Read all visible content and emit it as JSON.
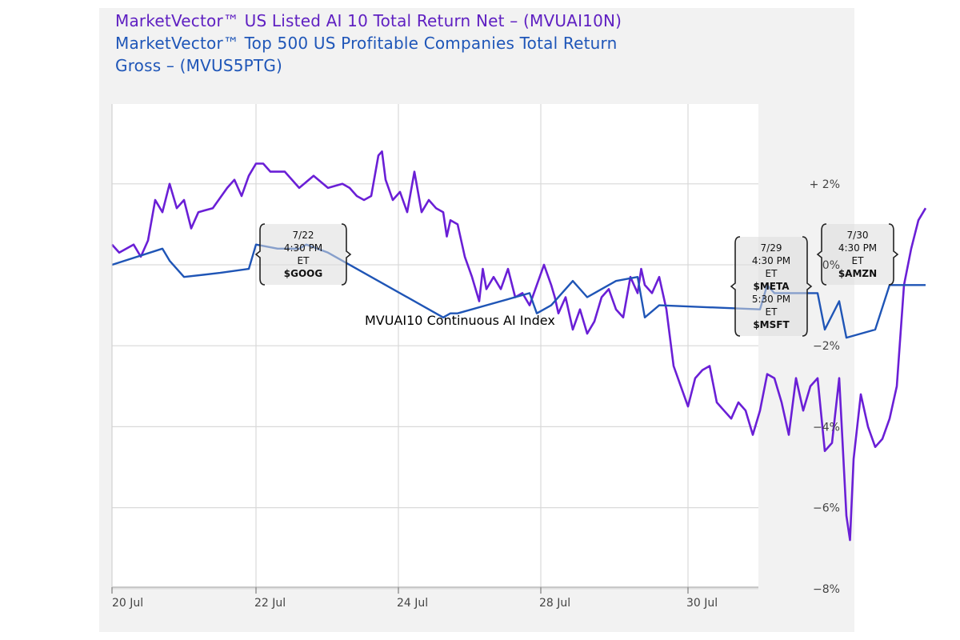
{
  "chart_data": {
    "type": "line",
    "legend": {
      "line1": "MarketVector™ US Listed AI 10 Total Return Net – (MVUAI10N)",
      "line2": "MarketVector™ Top 500 US Profitable Companies Total Return",
      "line3": "Gross – (MVUS5PTG)"
    },
    "x_tick_labels": [
      "20 Jul",
      "22 Jul",
      "24 Jul",
      "28 Jul",
      "30 Jul"
    ],
    "y_tick_labels": [
      "+ 2%",
      "0%",
      "−2%",
      "−4%",
      "−6%",
      "−8%"
    ],
    "ylim": [
      -8,
      2
    ],
    "grid": true,
    "y_axis_side": "right",
    "overlay_label": "MVUAI10 Continuous AI Index",
    "colors": {
      "series1": "#6a1fd6",
      "series2": "#1f55b6"
    },
    "series": [
      {
        "name": "MarketVector™ US Listed AI 10 Total Return Net – (MVUAI10N)",
        "points": [
          [
            0.0,
            0.5
          ],
          [
            0.1,
            0.3
          ],
          [
            0.2,
            0.4
          ],
          [
            0.3,
            0.5
          ],
          [
            0.4,
            0.2
          ],
          [
            0.5,
            0.6
          ],
          [
            0.6,
            1.6
          ],
          [
            0.7,
            1.3
          ],
          [
            0.8,
            2.0
          ],
          [
            0.9,
            1.4
          ],
          [
            1.0,
            1.6
          ],
          [
            1.1,
            0.9
          ],
          [
            1.2,
            1.3
          ],
          [
            1.4,
            1.4
          ],
          [
            1.6,
            1.9
          ],
          [
            1.7,
            2.1
          ],
          [
            1.8,
            1.7
          ],
          [
            1.9,
            2.2
          ],
          [
            2.0,
            2.5
          ],
          [
            2.1,
            2.5
          ],
          [
            2.2,
            2.3
          ],
          [
            2.4,
            2.3
          ],
          [
            2.5,
            2.1
          ],
          [
            2.6,
            1.9
          ],
          [
            2.8,
            2.2
          ],
          [
            3.0,
            1.9
          ],
          [
            3.2,
            2.0
          ],
          [
            3.3,
            1.9
          ],
          [
            3.4,
            1.7
          ],
          [
            3.5,
            1.6
          ],
          [
            3.6,
            1.7
          ],
          [
            3.7,
            2.7
          ],
          [
            3.75,
            2.8
          ],
          [
            3.8,
            2.1
          ],
          [
            3.9,
            1.6
          ],
          [
            4.0,
            1.8
          ],
          [
            4.1,
            1.3
          ],
          [
            4.2,
            2.3
          ],
          [
            4.3,
            1.3
          ],
          [
            4.4,
            1.6
          ],
          [
            4.5,
            1.4
          ],
          [
            4.6,
            1.3
          ],
          [
            4.65,
            0.7
          ],
          [
            4.7,
            1.1
          ],
          [
            4.8,
            1.0
          ],
          [
            4.9,
            0.2
          ],
          [
            5.0,
            -0.3
          ],
          [
            5.1,
            -0.9
          ],
          [
            5.15,
            -0.1
          ],
          [
            5.2,
            -0.6
          ],
          [
            5.3,
            -0.3
          ],
          [
            5.4,
            -0.6
          ],
          [
            5.5,
            -0.1
          ],
          [
            5.6,
            -0.8
          ],
          [
            5.7,
            -0.7
          ],
          [
            5.8,
            -1.0
          ],
          [
            5.9,
            -0.5
          ],
          [
            6.0,
            0.0
          ],
          [
            6.1,
            -0.5
          ],
          [
            6.15,
            -0.8
          ],
          [
            6.2,
            -1.2
          ],
          [
            6.3,
            -0.8
          ],
          [
            6.4,
            -1.6
          ],
          [
            6.5,
            -1.1
          ],
          [
            6.6,
            -1.7
          ],
          [
            6.7,
            -1.4
          ],
          [
            6.8,
            -0.8
          ],
          [
            6.9,
            -0.6
          ],
          [
            7.0,
            -1.1
          ],
          [
            7.1,
            -1.3
          ],
          [
            7.2,
            -0.3
          ],
          [
            7.3,
            -0.7
          ],
          [
            7.35,
            -0.1
          ],
          [
            7.4,
            -0.5
          ],
          [
            7.5,
            -0.7
          ],
          [
            7.6,
            -0.3
          ],
          [
            7.7,
            -1.1
          ],
          [
            7.8,
            -2.5
          ],
          [
            7.9,
            -3.0
          ],
          [
            8.0,
            -3.5
          ],
          [
            8.1,
            -2.8
          ],
          [
            8.2,
            -2.6
          ],
          [
            8.3,
            -2.5
          ],
          [
            8.4,
            -3.4
          ],
          [
            8.5,
            -3.6
          ],
          [
            8.6,
            -3.8
          ],
          [
            8.7,
            -3.4
          ],
          [
            8.8,
            -3.6
          ],
          [
            8.9,
            -4.2
          ],
          [
            9.0,
            -3.6
          ],
          [
            9.1,
            -2.7
          ],
          [
            9.2,
            -2.8
          ],
          [
            9.3,
            -3.4
          ],
          [
            9.4,
            -4.2
          ],
          [
            9.5,
            -2.8
          ],
          [
            9.6,
            -3.6
          ],
          [
            9.7,
            -3.0
          ],
          [
            9.8,
            -2.8
          ],
          [
            9.9,
            -4.6
          ],
          [
            10.0,
            -4.4
          ],
          [
            10.1,
            -2.8
          ],
          [
            10.2,
            -6.2
          ],
          [
            10.25,
            -6.8
          ],
          [
            10.3,
            -4.8
          ],
          [
            10.4,
            -3.2
          ],
          [
            10.5,
            -4.0
          ],
          [
            10.6,
            -4.5
          ],
          [
            10.7,
            -4.3
          ],
          [
            10.8,
            -3.8
          ],
          [
            10.9,
            -3.0
          ],
          [
            11.0,
            -0.5
          ],
          [
            11.1,
            0.4
          ],
          [
            11.2,
            1.1
          ],
          [
            11.3,
            1.4
          ]
        ]
      },
      {
        "name": "MarketVector™ Top 500 US Profitable Companies Total Return Gross – (MVUS5PTG)",
        "points": [
          [
            0.0,
            0.0
          ],
          [
            0.7,
            0.4
          ],
          [
            0.8,
            0.1
          ],
          [
            1.0,
            -0.3
          ],
          [
            1.5,
            -0.2
          ],
          [
            1.9,
            -0.1
          ],
          [
            2.0,
            0.5
          ],
          [
            2.3,
            0.4
          ],
          [
            2.6,
            0.4
          ],
          [
            2.7,
            0.5
          ],
          [
            3.0,
            0.3
          ],
          [
            4.6,
            -1.3
          ],
          [
            4.7,
            -1.2
          ],
          [
            4.8,
            -1.2
          ],
          [
            5.8,
            -0.7
          ],
          [
            5.9,
            -1.2
          ],
          [
            6.1,
            -1.0
          ],
          [
            6.4,
            -0.4
          ],
          [
            6.6,
            -0.8
          ],
          [
            6.7,
            -0.7
          ],
          [
            7.0,
            -0.4
          ],
          [
            7.3,
            -0.3
          ],
          [
            7.4,
            -1.3
          ],
          [
            7.6,
            -1.0
          ],
          [
            9.0,
            -1.1
          ],
          [
            9.1,
            -0.5
          ],
          [
            9.2,
            -0.7
          ],
          [
            9.8,
            -0.7
          ],
          [
            9.9,
            -1.6
          ],
          [
            10.1,
            -0.9
          ],
          [
            10.2,
            -1.8
          ],
          [
            10.6,
            -1.6
          ],
          [
            10.8,
            -0.5
          ],
          [
            11.3,
            -0.5
          ]
        ]
      }
    ],
    "annotations": [
      {
        "x_start": 2.1,
        "x_end": 3.3,
        "lines": [
          "7/22",
          "4:30 PM",
          "ET",
          "$GOOG"
        ]
      },
      {
        "x_start": 8.7,
        "x_end": 9.7,
        "lines": [
          "7/29",
          "4:30 PM",
          "ET",
          "$META",
          "5:30 PM",
          "ET",
          "$MSFT"
        ]
      },
      {
        "x_start": 9.9,
        "x_end": 10.9,
        "lines": [
          "7/30",
          "4:30 PM",
          "ET",
          "$AMZN"
        ]
      }
    ]
  }
}
